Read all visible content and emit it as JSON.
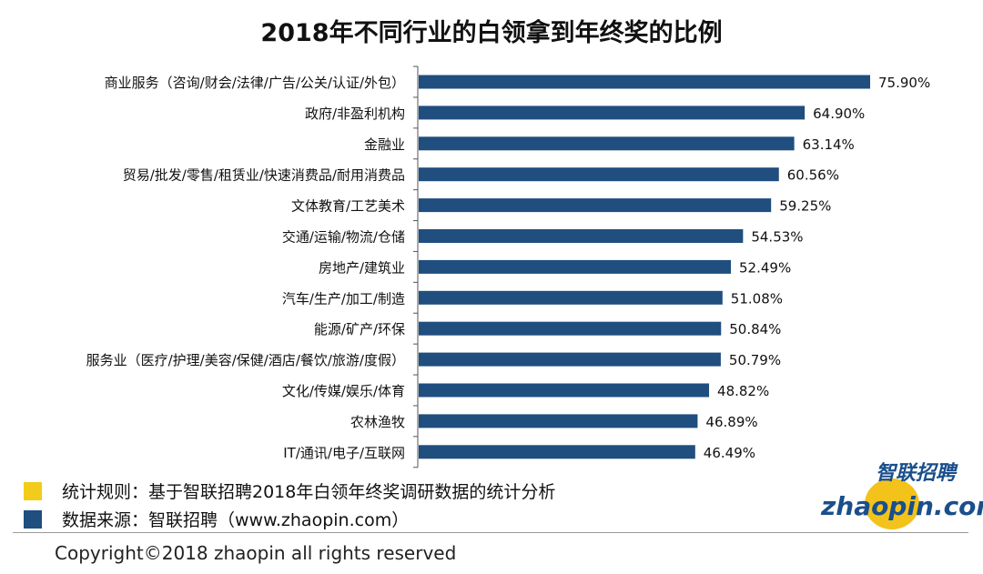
{
  "chart_data": {
    "type": "bar",
    "orientation": "horizontal",
    "title": "2018年不同行业的白领拿到年终奖的比例",
    "categories": [
      "商业服务（咨询/财会/法律/广告/公关/认证/外包）",
      "政府/非盈利机构",
      "金融业",
      "贸易/批发/零售/租赁业/快速消费品/耐用消费品",
      "文体教育/工艺美术",
      "交通/运输/物流/仓储",
      "房地产/建筑业",
      "汽车/生产/加工/制造",
      "能源/矿产/环保",
      "服务业（医疗/护理/美容/保健/酒店/餐饮/旅游/度假）",
      "文化/传媒/娱乐/体育",
      "农林渔牧",
      "IT/通讯/电子/互联网"
    ],
    "values": [
      75.9,
      64.9,
      63.14,
      60.56,
      59.25,
      54.53,
      52.49,
      51.08,
      50.84,
      50.79,
      48.82,
      46.89,
      46.49
    ],
    "labels": [
      "75.90%",
      "64.90%",
      "63.14%",
      "60.56%",
      "59.25%",
      "54.53%",
      "52.49%",
      "51.08%",
      "50.84%",
      "50.79%",
      "48.82%",
      "46.89%",
      "46.49%"
    ],
    "xlim": [
      0,
      80
    ],
    "bar_color": "#1f4e7f",
    "grid": false
  },
  "legend": [
    {
      "label": "统计规则：基于智联招聘2018年白领年终奖调研数据的统计分析",
      "color": "#f2cc1a"
    },
    {
      "label": "数据来源：智联招聘（www.zhaopin.com）",
      "color": "#1f4e7f"
    }
  ],
  "logo": {
    "cn": "智联招聘",
    "en": "zhaopin.com"
  },
  "copyright": "Copyright©2018 zhaopin all rights reserved"
}
